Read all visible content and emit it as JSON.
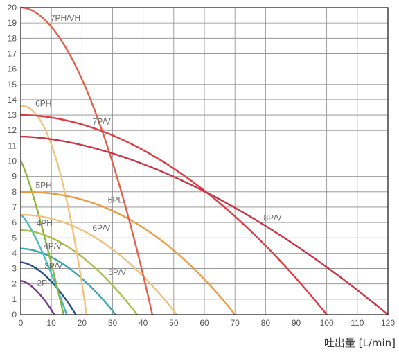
{
  "chart_data": {
    "type": "line",
    "title": "",
    "xlabel": "吐出量 [L/min]",
    "ylabel": "",
    "xlim": [
      0,
      120
    ],
    "ylim": [
      0,
      20
    ],
    "x_ticks": [
      0,
      10,
      20,
      30,
      40,
      50,
      60,
      70,
      80,
      90,
      100,
      110,
      120
    ],
    "y_ticks": [
      0,
      1,
      2,
      3,
      4,
      5,
      6,
      7,
      8,
      9,
      10,
      11,
      12,
      13,
      14,
      15,
      16,
      17,
      18,
      19,
      20
    ],
    "grid": true,
    "series": [
      {
        "name": "2P",
        "color": "#7b3a8f",
        "shut_off_head": 2.2,
        "max_flow": 11
      },
      {
        "name": "3P/V",
        "color": "#1f4e8c",
        "shut_off_head": 3.4,
        "max_flow": 18
      },
      {
        "name": "4P/V",
        "color": "#3aa6b4",
        "shut_off_head": 4.3,
        "max_flow": 31
      },
      {
        "name": "4PH",
        "color": "#49b8c8",
        "shut_off_head": 6.5,
        "max_flow": 15
      },
      {
        "name": "5PH",
        "color": "#8db43a",
        "shut_off_head": 10.0,
        "max_flow": 14
      },
      {
        "name": "5P/V",
        "color": "#a6c04a",
        "shut_off_head": 5.5,
        "max_flow": 38
      },
      {
        "name": "6P/V",
        "color": "#f3c07a",
        "shut_off_head": 6.5,
        "max_flow": 51
      },
      {
        "name": "6PH",
        "color": "#f2c27c",
        "shut_off_head": 13.6,
        "max_flow": 21.5
      },
      {
        "name": "6PL",
        "color": "#ee9a43",
        "shut_off_head": 8.0,
        "max_flow": 70
      },
      {
        "name": "7PH/VH",
        "color": "#e0604a",
        "shut_off_head": 20.0,
        "max_flow": 43
      },
      {
        "name": "7P/V",
        "color": "#e03a3e",
        "shut_off_head": 13.0,
        "max_flow": 100
      },
      {
        "name": "8P/V",
        "color": "#c93544",
        "shut_off_head": 11.6,
        "max_flow": 120
      }
    ]
  }
}
